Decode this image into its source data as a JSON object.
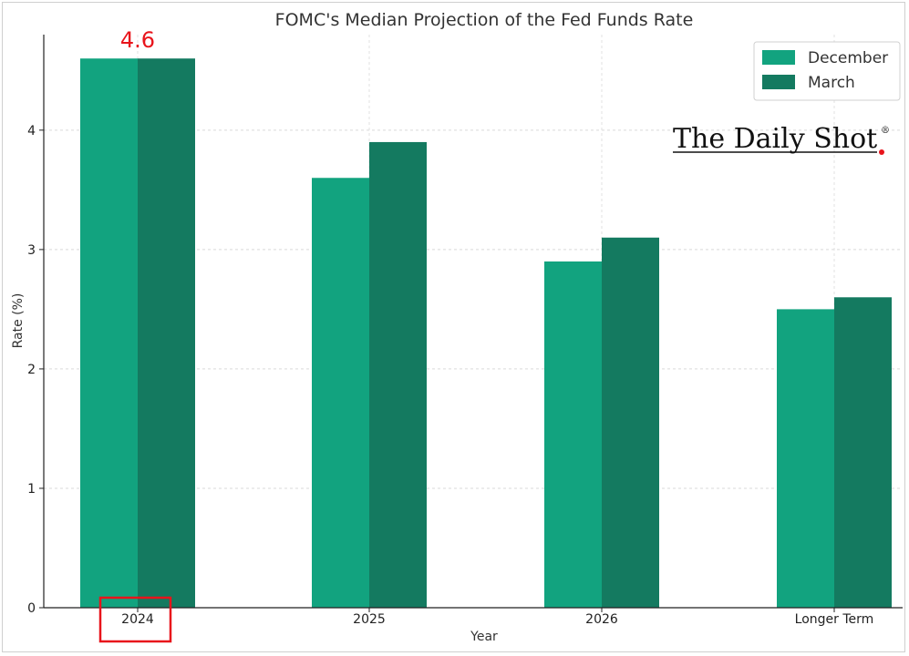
{
  "chart_data": {
    "type": "bar",
    "title": "FOMC's Median Projection of the Fed Funds Rate",
    "xlabel": "Year",
    "ylabel": "Rate (%)",
    "categories": [
      "2024",
      "2025",
      "2026",
      "Longer Term"
    ],
    "series": [
      {
        "name": "December",
        "values": [
          4.6,
          3.6,
          2.9,
          2.5
        ],
        "color": "#12a37f"
      },
      {
        "name": "March",
        "values": [
          4.6,
          3.9,
          3.1,
          2.6
        ],
        "color": "#147a60"
      }
    ],
    "ylim": [
      0,
      4.8
    ],
    "yticks": [
      0,
      1,
      2,
      3,
      4
    ],
    "grid": true,
    "legend_position": "top-right",
    "annotations": [
      {
        "text": "4.6",
        "category": "2024",
        "color": "#e8141b"
      }
    ],
    "highlight": {
      "category": "2024",
      "color": "#e8141b"
    }
  },
  "branding": {
    "logo_text": "The Daily Shot",
    "logo_mark": "®"
  }
}
